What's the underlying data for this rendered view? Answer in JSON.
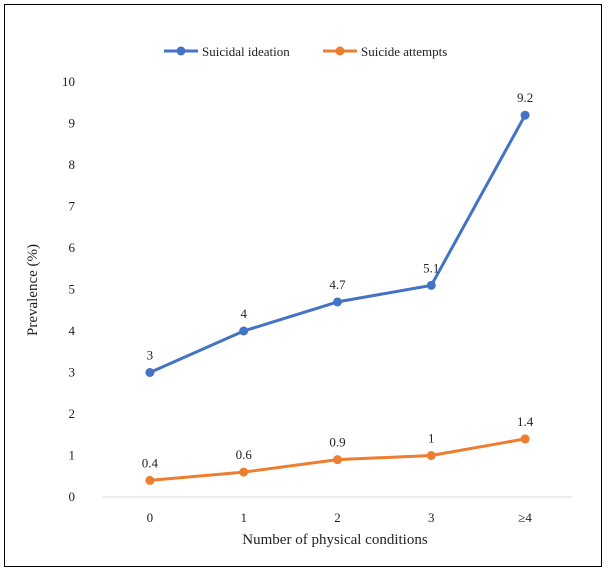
{
  "chart_data": {
    "type": "line",
    "categories": [
      "0",
      "1",
      "2",
      "3",
      "≥4"
    ],
    "series": [
      {
        "name": "Suicidal ideation",
        "values": [
          3,
          4,
          4.7,
          5.1,
          9.2
        ],
        "labels": [
          "3",
          "4",
          "4.7",
          "5.1",
          "9.2"
        ],
        "color": "#4472C4"
      },
      {
        "name": "Suicide attempts",
        "values": [
          0.4,
          0.6,
          0.9,
          1,
          1.4
        ],
        "labels": [
          "0.4",
          "0.6",
          "0.9",
          "1",
          "1.4"
        ],
        "color": "#ED7D31"
      }
    ],
    "xlabel": "Number of physical conditions",
    "ylabel": "Prevalence (%)",
    "ylim": [
      0,
      10
    ],
    "yticks": [
      "0",
      "1",
      "2",
      "3",
      "4",
      "5",
      "6",
      "7",
      "8",
      "9",
      "10"
    ],
    "grid": false,
    "legend_position": "top"
  }
}
